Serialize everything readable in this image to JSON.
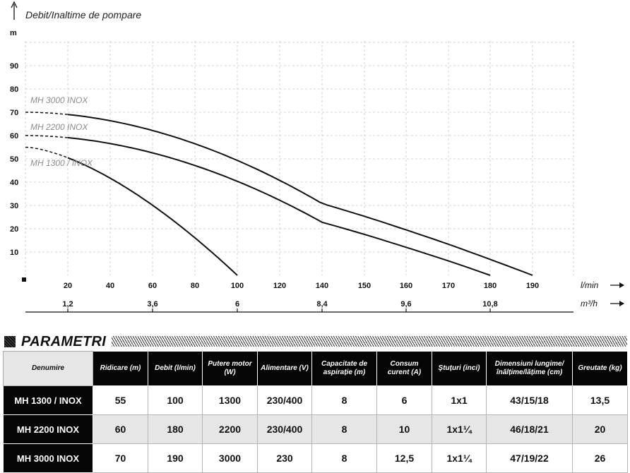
{
  "chart_data": {
    "type": "line",
    "title": "Debit/Inaltime de pompare",
    "ylabel": "m",
    "xlabel": "l/min",
    "xlabel_secondary": "m³/h",
    "xlim": [
      0,
      195
    ],
    "ylim": [
      0,
      100
    ],
    "yticks": [
      "10",
      "20",
      "30",
      "40",
      "50",
      "60",
      "70",
      "80",
      "90"
    ],
    "yticks_values": [
      10,
      20,
      30,
      40,
      50,
      60,
      70,
      80,
      90
    ],
    "xticks": [
      "20",
      "40",
      "60",
      "80",
      "100",
      "120",
      "140",
      "150",
      "160",
      "170",
      "180",
      "190"
    ],
    "xticks_secondary": [
      {
        "label": "1,2",
        "at": "20"
      },
      {
        "label": "3,6",
        "at": "60"
      },
      {
        "label": "6",
        "at": "100"
      },
      {
        "label": "8,4",
        "at": "140"
      },
      {
        "label": "9,6",
        "at": "160"
      },
      {
        "label": "10,8",
        "at": "180"
      }
    ],
    "grid": true,
    "series": [
      {
        "name": "MH 1300 / INOX",
        "max_head": 55,
        "max_flow": 100,
        "color": "#111111"
      },
      {
        "name": "MH 2200 INOX",
        "max_head": 60,
        "max_flow": 180,
        "color": "#111111"
      },
      {
        "name": "MH 3000 INOX",
        "max_head": 70,
        "max_flow": 190,
        "color": "#111111"
      }
    ]
  },
  "section": {
    "title": "PARAMETRI"
  },
  "table": {
    "headers": [
      "Denumire",
      "Ridicare (m)",
      "Debit (l/min)",
      "Putere motor (W)",
      "Alimentare (V)",
      "Capacitate de aspirație (m)",
      "Consum curent (A)",
      "Ştuțuri (inci)",
      "Dimensiuni lungime/ înălțime/lățime (cm)",
      "Greutate (kg)"
    ],
    "rows": [
      [
        "MH 1300 / INOX",
        "55",
        "100",
        "1300",
        "230/400",
        "8",
        "6",
        "1x1",
        "43/15/18",
        "13,5"
      ],
      [
        "MH 2200 INOX",
        "60",
        "180",
        "2200",
        "230/400",
        "8",
        "10",
        "1x1¼",
        "46/18/21",
        "20"
      ],
      [
        "MH 3000 INOX",
        "70",
        "190",
        "3000",
        "230",
        "8",
        "12,5",
        "1x1¼",
        "47/19/22",
        "26"
      ]
    ]
  }
}
